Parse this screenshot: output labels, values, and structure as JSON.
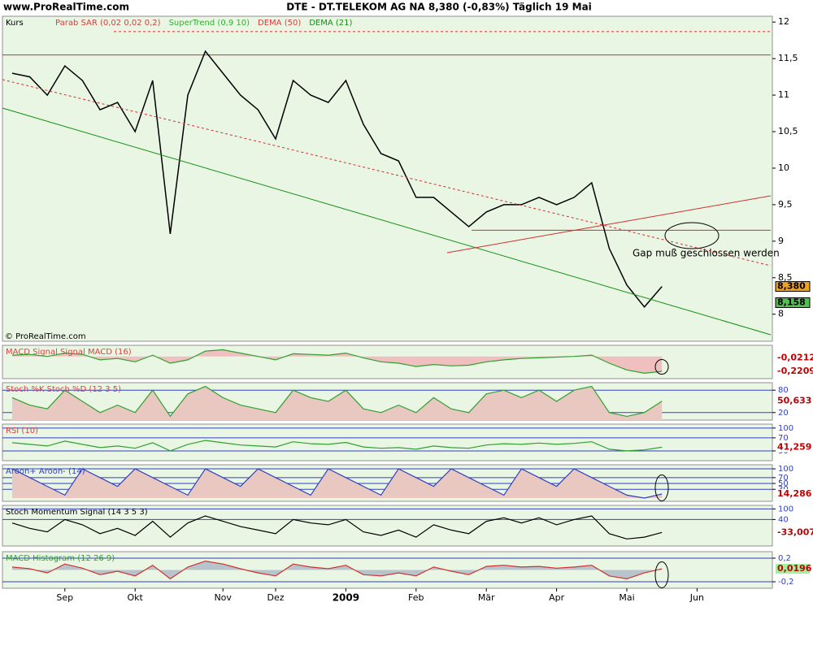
{
  "header": {
    "site": "www.ProRealTime.com",
    "title": "DTE - DT.TELEKOM AG NA    8,380 (-0,83%)    Täglich  19 Mai"
  },
  "chart_data": [
    {
      "type": "line",
      "title": "Kurs",
      "legend": [
        {
          "name": "Parab SAR (0,02 0,02 0,2)",
          "color": "#d04040"
        },
        {
          "name": "SuperTrend (0,9 10)",
          "color": "#30b030"
        },
        {
          "name": "DEMA (50)",
          "color": "#d04040"
        },
        {
          "name": "DEMA (21)",
          "color": "#109010"
        }
      ],
      "categories": [
        null,
        null,
        null,
        "Sep",
        null,
        null,
        null,
        "Okt",
        null,
        null,
        null,
        null,
        "Nov",
        null,
        null,
        "Dez",
        null,
        null,
        null,
        "2009",
        null,
        null,
        null,
        "Feb",
        null,
        null,
        null,
        "Mär",
        null,
        null,
        null,
        "Apr",
        null,
        null,
        null,
        "Mai",
        null,
        null,
        null,
        "Jun",
        null,
        null,
        null,
        null
      ],
      "series": [
        {
          "name": "Kurs",
          "color": "#000000",
          "values": [
            11.3,
            11.25,
            11.0,
            11.4,
            11.2,
            10.8,
            10.9,
            10.5,
            11.2,
            9.1,
            11.0,
            11.6,
            11.3,
            11.0,
            10.8,
            10.4,
            11.2,
            11.0,
            10.9,
            11.2,
            10.6,
            10.2,
            10.1,
            9.6,
            9.6,
            9.4,
            9.2,
            9.4,
            9.5,
            9.5,
            9.6,
            9.5,
            9.6,
            9.8,
            8.9,
            8.4,
            8.1,
            8.38,
            null,
            null,
            null,
            null,
            null,
            null
          ]
        }
      ],
      "ylim": [
        7.63,
        12.08
      ],
      "yticks": [
        8,
        {
          "value": 8.5,
          "label": "8,5"
        },
        9,
        {
          "value": 9.5,
          "label": "9,5"
        },
        10,
        {
          "value": 10.5,
          "label": "10,5"
        },
        11,
        {
          "value": 11.5,
          "label": "11,5"
        },
        12
      ],
      "hlines": [
        {
          "value": 11.55,
          "color": "#d03030"
        },
        {
          "value": 11.87,
          "color": "#d03030"
        },
        {
          "value": 9.15,
          "color": "#d03030"
        }
      ],
      "value_markers": [
        {
          "value": 8.38,
          "label": "8,380",
          "color": "#f0a020"
        },
        {
          "value": 8.158,
          "label": "8,158",
          "color": "#50c050"
        }
      ],
      "annotations": [
        "Gap muß geschlossen werden",
        "© ProRealTime.com"
      ]
    },
    {
      "type": "area",
      "title": "MACD Signal Signal MACD (16)",
      "color": "#e04040",
      "fill": "#f0c0c0",
      "series": [
        {
          "name": "MACD",
          "color": "#30a030",
          "values": [
            0.02,
            0.03,
            0.0,
            0.05,
            0.03,
            -0.05,
            -0.03,
            -0.08,
            0.02,
            -0.1,
            -0.05,
            0.08,
            0.1,
            0.05,
            0.0,
            -0.05,
            0.04,
            0.03,
            0.02,
            0.05,
            -0.02,
            -0.08,
            -0.1,
            -0.15,
            -0.12,
            -0.14,
            -0.13,
            -0.08,
            -0.05,
            -0.03,
            -0.02,
            -0.01,
            0.0,
            0.02,
            -0.1,
            -0.2,
            -0.25,
            -0.2209,
            null,
            null,
            null,
            null,
            null,
            null
          ]
        }
      ],
      "ylim": [
        -0.33,
        0.166
      ],
      "yticks": [],
      "value_markers": [
        {
          "value": -0.0212,
          "label": "-0,0212",
          "color": "#ffffff"
        },
        {
          "value": -0.2209,
          "label": "-0,2209",
          "color": "#ffffff"
        }
      ]
    },
    {
      "type": "area",
      "title": "Stoch %K Stoch %D (12 3 5)",
      "color": "#e04040",
      "fill": "#e8c8c0",
      "series": [
        {
          "name": "Stoch %K",
          "color": "#30a030",
          "values": [
            60,
            40,
            30,
            80,
            50,
            20,
            40,
            20,
            80,
            10,
            70,
            90,
            60,
            40,
            30,
            20,
            80,
            60,
            50,
            80,
            30,
            20,
            40,
            20,
            60,
            30,
            20,
            70,
            80,
            60,
            80,
            50,
            80,
            90,
            20,
            10,
            20,
            50.633,
            null,
            null,
            null,
            null,
            null,
            null
          ]
        }
      ],
      "ylim": [
        0,
        100
      ],
      "yticks": [
        20,
        80
      ],
      "value_markers": [
        {
          "value": 50.633,
          "label": "50,633",
          "color": "#ffffff"
        }
      ]
    },
    {
      "type": "area",
      "title": "RSI (10)",
      "color": "#e04040",
      "fill": "none",
      "series": [
        {
          "name": "RSI",
          "color": "#30a030",
          "values": [
            55,
            50,
            45,
            60,
            50,
            40,
            45,
            38,
            55,
            30,
            50,
            62,
            55,
            48,
            45,
            42,
            58,
            52,
            50,
            56,
            42,
            38,
            40,
            35,
            45,
            40,
            38,
            48,
            52,
            50,
            54,
            50,
            53,
            58,
            35,
            30,
            33,
            41.259,
            null,
            null,
            null,
            null,
            null,
            null
          ]
        }
      ],
      "ylim": [
        0,
        112
      ],
      "yticks": [
        30,
        70,
        100
      ],
      "value_markers": [
        {
          "value": 41.259,
          "label": "41,259",
          "color": "#ffffff"
        }
      ]
    },
    {
      "type": "area",
      "title": "Aroon+ Aroon- (14)",
      "color": "#3040c0",
      "fill": "#e8c8c0",
      "series": [
        {
          "name": "Aroon+",
          "color": "#3040c0",
          "values": [
            100,
            70,
            40,
            10,
            100,
            70,
            40,
            100,
            70,
            40,
            10,
            100,
            70,
            40,
            100,
            70,
            40,
            10,
            100,
            70,
            40,
            10,
            100,
            70,
            40,
            100,
            70,
            40,
            10,
            100,
            70,
            40,
            100,
            70,
            40,
            10,
            0,
            14.286,
            null,
            null,
            null,
            null,
            null,
            null
          ]
        }
      ],
      "ylim": [
        -11,
        114
      ],
      "yticks": [
        30,
        50,
        70,
        100
      ],
      "value_markers": [
        {
          "value": 14.286,
          "label": "14,286",
          "color": "#ffffff"
        }
      ]
    },
    {
      "type": "area",
      "title": "Stoch Momentum Signal (14 3 5 3)",
      "color": "#000000",
      "fill": "none",
      "series": [
        {
          "name": "Stoch Momentum",
          "color": "#000000",
          "values": [
            20,
            -10,
            -30,
            40,
            10,
            -40,
            -10,
            -50,
            30,
            -60,
            20,
            60,
            30,
            0,
            -20,
            -40,
            40,
            20,
            10,
            40,
            -30,
            -50,
            -20,
            -60,
            10,
            -20,
            -40,
            30,
            50,
            20,
            50,
            10,
            40,
            60,
            -40,
            -70,
            -60,
            -33.007,
            null,
            null,
            null,
            null,
            null,
            null
          ]
        }
      ],
      "ylim": [
        -110,
        120
      ],
      "yticks": [
        40,
        100
      ],
      "value_markers": [
        {
          "value": -33.007,
          "label": "-33,007",
          "color": "#ffffff"
        }
      ]
    },
    {
      "type": "area",
      "title": "MACD Histogram (12 26 9)",
      "color": "#30a030",
      "fill": "#b8c4cc",
      "series": [
        {
          "name": "MACD Histogram",
          "color": "#d03030",
          "values": [
            0.05,
            0.02,
            -0.05,
            0.1,
            0.03,
            -0.08,
            -0.02,
            -0.1,
            0.08,
            -0.15,
            0.05,
            0.15,
            0.1,
            0.02,
            -0.05,
            -0.1,
            0.1,
            0.05,
            0.02,
            0.08,
            -0.08,
            -0.1,
            -0.05,
            -0.1,
            0.05,
            -0.02,
            -0.08,
            0.06,
            0.08,
            0.05,
            0.06,
            0.03,
            0.05,
            0.08,
            -0.1,
            -0.15,
            -0.05,
            0.0196,
            null,
            null,
            null,
            null,
            null,
            null
          ]
        }
      ],
      "ylim": [
        -0.31,
        0.31
      ],
      "yticks": [
        {
          "value": 0.2,
          "label": "0,2"
        },
        {
          "value": -0.2,
          "label": "-0,2"
        }
      ],
      "value_markers": [
        {
          "value": 0.0196,
          "label": "0,0196",
          "color": "#a0f0a0"
        }
      ]
    }
  ]
}
